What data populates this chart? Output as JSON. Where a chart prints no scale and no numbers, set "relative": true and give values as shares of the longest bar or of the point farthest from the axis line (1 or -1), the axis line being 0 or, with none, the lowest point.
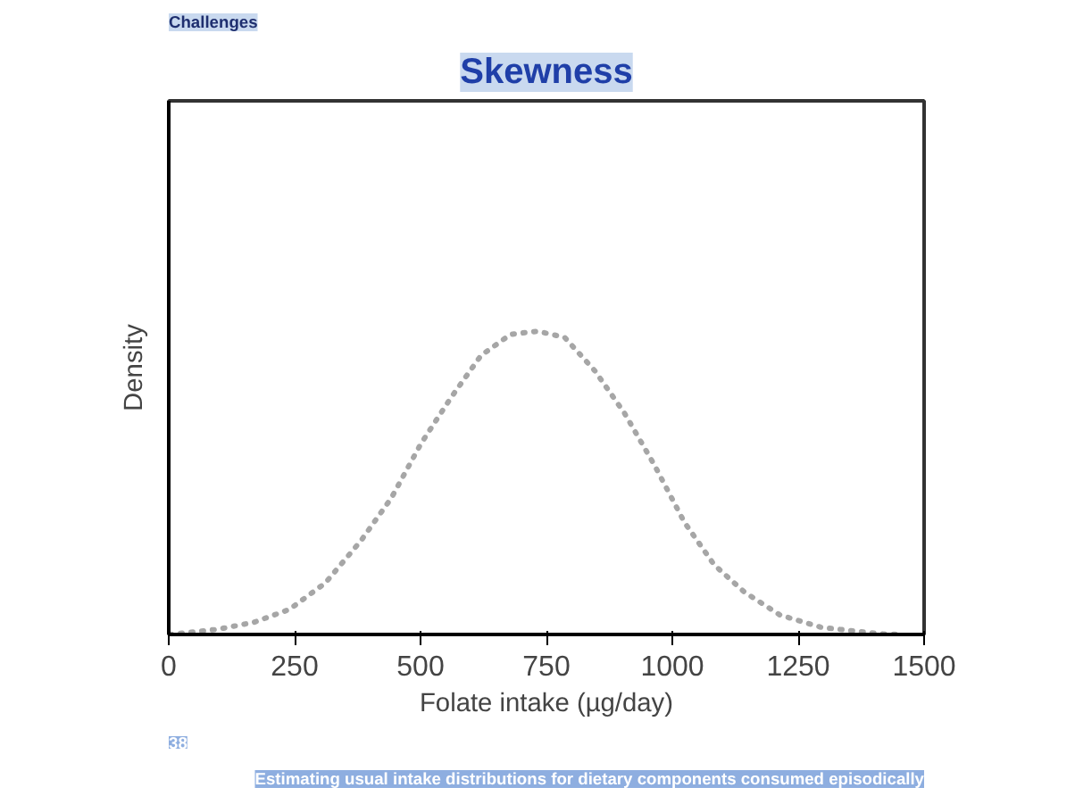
{
  "chart_data": {
    "type": "line",
    "title": "Skewness",
    "xlabel": "Folate intake (µg/day)",
    "ylabel": "Density",
    "relative": true,
    "x": [
      2,
      97,
      169,
      240,
      311,
      382,
      442,
      501,
      560,
      620,
      679,
      733,
      786,
      846,
      905,
      964,
      1024,
      1083,
      1143,
      1214,
      1297,
      1415,
      1450
    ],
    "series": [
      {
        "color": "#a6a6a6",
        "values": [
          0,
          0.017,
          0.04,
          0.083,
          0.17,
          0.31,
          0.45,
          0.63,
          0.78,
          0.92,
          0.99,
          1,
          0.98,
          0.87,
          0.73,
          0.56,
          0.37,
          0.23,
          0.14,
          0.064,
          0.023,
          0.002,
          0
        ]
      }
    ],
    "xlim": [
      0,
      1500
    ],
    "xticks": [
      0,
      250,
      500,
      750,
      1000,
      1250,
      1500
    ],
    "line_style": "dotted",
    "grid": false,
    "annotations": [
      "Challenges",
      "38",
      "Estimating usual intake distributions for dietary components consumed episodically"
    ]
  }
}
